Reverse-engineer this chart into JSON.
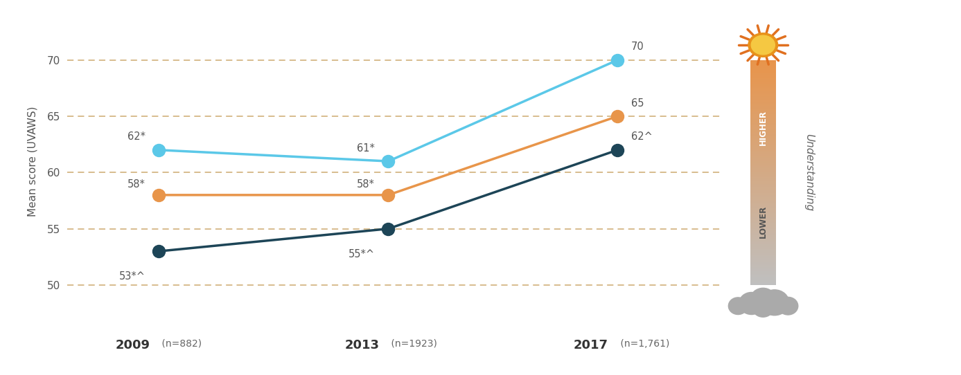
{
  "years": [
    2009,
    2013,
    2017
  ],
  "year_labels": [
    "2009",
    "2013",
    "2017"
  ],
  "year_sublabels": [
    "(n=882)",
    "(n=1923)",
    "(n=1,761)"
  ],
  "all_values": [
    58,
    58,
    65
  ],
  "men_values": [
    53,
    55,
    62
  ],
  "women_values": [
    62,
    61,
    70
  ],
  "all_labels": [
    "58*",
    "58*",
    "65"
  ],
  "men_labels": [
    "53*^",
    "55*^",
    "62^"
  ],
  "women_labels": [
    "62*",
    "61*",
    "70"
  ],
  "color_all": "#E8954A",
  "color_men": "#1D4557",
  "color_women": "#5BC8E8",
  "color_grid": "#C8A060",
  "ylabel": "Mean score (UVAWS)",
  "ylim_min": 48,
  "ylim_max": 74,
  "yticks": [
    50,
    55,
    60,
    65,
    70
  ],
  "background_color": "#ffffff"
}
